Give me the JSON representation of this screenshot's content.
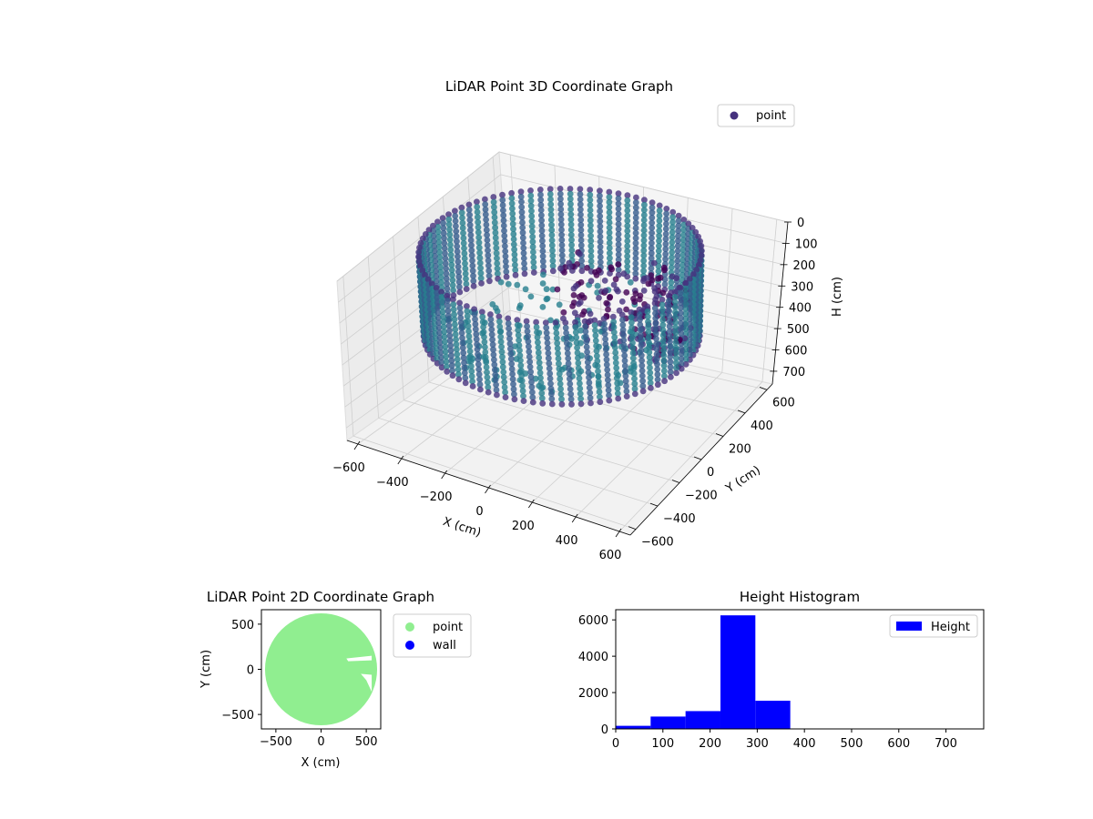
{
  "chart_data": [
    {
      "type": "scatter",
      "projection": "3d",
      "title": "LiDAR Point 3D Coordinate Graph",
      "xlabel": "X (cm)",
      "ylabel": "Y (cm)",
      "zlabel": "H (cm)",
      "xlim": [
        -650,
        650
      ],
      "ylim": [
        -650,
        650
      ],
      "zlim": [
        0,
        760
      ],
      "z_axis_inverted": true,
      "x_ticks": [
        -600,
        -400,
        -200,
        0,
        200,
        400,
        600
      ],
      "y_ticks": [
        -600,
        -400,
        -200,
        0,
        200,
        400,
        600
      ],
      "z_ticks": [
        0,
        100,
        200,
        300,
        400,
        500,
        600,
        700
      ],
      "grid": true,
      "legend": {
        "placement": "upper-right",
        "entries": [
          "point"
        ]
      },
      "colormap": [
        "#440154",
        "#46327e",
        "#365c8d",
        "#277f8e",
        "#1fa187"
      ],
      "series": [
        {
          "name": "point",
          "shape": "cylindrical wall scan of a circular room with partial ceiling/interior returns",
          "wall_radius_cm": 560,
          "height_range_cm": [
            0,
            370
          ],
          "interior_cluster": {
            "x": [
              0,
              560
            ],
            "y": [
              -50,
              150
            ],
            "h": [
              0,
              370
            ]
          },
          "sample_points": [
            {
              "x": 560,
              "y": 0,
              "h": 0
            },
            {
              "x": 396,
              "y": 396,
              "h": 0
            },
            {
              "x": 0,
              "y": 560,
              "h": 0
            },
            {
              "x": -396,
              "y": 396,
              "h": 0
            },
            {
              "x": -560,
              "y": 0,
              "h": 0
            },
            {
              "x": -396,
              "y": -396,
              "h": 0
            },
            {
              "x": 0,
              "y": -560,
              "h": 0
            },
            {
              "x": 396,
              "y": -396,
              "h": 0
            },
            {
              "x": 560,
              "y": 0,
              "h": 370
            },
            {
              "x": 396,
              "y": 396,
              "h": 370
            },
            {
              "x": 0,
              "y": 560,
              "h": 370
            },
            {
              "x": -396,
              "y": 396,
              "h": 370
            },
            {
              "x": -560,
              "y": 0,
              "h": 370
            },
            {
              "x": -396,
              "y": -396,
              "h": 370
            },
            {
              "x": 0,
              "y": -560,
              "h": 370
            },
            {
              "x": 396,
              "y": -396,
              "h": 370
            }
          ]
        }
      ]
    },
    {
      "type": "scatter",
      "title": "LiDAR Point 2D Coordinate Graph",
      "xlabel": "X (cm)",
      "ylabel": "Y (cm)",
      "xlim": [
        -660,
        660
      ],
      "ylim": [
        -660,
        660
      ],
      "x_ticks": [
        -500,
        0,
        500
      ],
      "y_ticks": [
        -500,
        0,
        500
      ],
      "grid": false,
      "legend": {
        "placement": "outside-right",
        "entries": [
          "point",
          "wall"
        ]
      },
      "series": [
        {
          "name": "point",
          "color": "#90ee90",
          "shape": "filled disc",
          "center": [
            0,
            0
          ],
          "radius_cm": 620
        },
        {
          "name": "wall",
          "color": "#0000ff",
          "points": []
        }
      ]
    },
    {
      "type": "bar",
      "title": "Height Histogram",
      "xlabel": "",
      "ylabel": "",
      "xlim": [
        0,
        780
      ],
      "ylim": [
        0,
        6560
      ],
      "x_ticks": [
        0,
        100,
        200,
        300,
        400,
        500,
        600,
        700
      ],
      "y_ticks": [
        0,
        2000,
        4000,
        6000
      ],
      "grid": false,
      "legend": {
        "placement": "upper-right",
        "entries": [
          "Height"
        ]
      },
      "series": [
        {
          "name": "Height",
          "color": "#0000ff",
          "bins": [
            {
              "x0": 0,
              "x1": 74,
              "count": 170
            },
            {
              "x0": 74,
              "x1": 148,
              "count": 680
            },
            {
              "x0": 148,
              "x1": 222,
              "count": 980
            },
            {
              "x0": 222,
              "x1": 296,
              "count": 6250
            },
            {
              "x0": 296,
              "x1": 370,
              "count": 1550
            }
          ]
        }
      ]
    }
  ]
}
